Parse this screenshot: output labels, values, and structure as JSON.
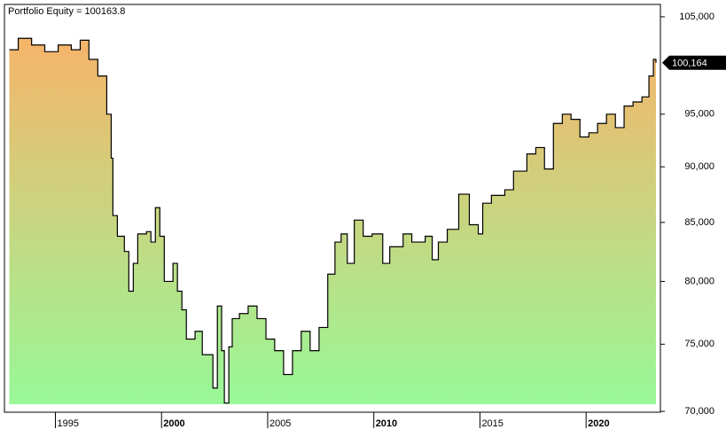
{
  "chart_data": {
    "type": "step-area",
    "title": "Portfolio Equity = 100163.8",
    "x": [
      1992.83,
      1993.25,
      1993.88,
      1994.5,
      1995.13,
      1995.75,
      1996.17,
      1996.58,
      1997.0,
      1997.42,
      1997.63,
      1997.71,
      1997.92,
      1998.25,
      1998.46,
      1998.67,
      1998.88,
      1999.29,
      1999.5,
      1999.71,
      1999.92,
      2000.13,
      2000.54,
      2000.75,
      2000.96,
      2001.17,
      2001.58,
      2001.92,
      2002.21,
      2002.42,
      2002.63,
      2002.83,
      2002.96,
      2003.17,
      2003.33,
      2003.67,
      2004.08,
      2004.5,
      2004.92,
      2005.33,
      2005.75,
      2006.17,
      2006.58,
      2007.0,
      2007.42,
      2007.83,
      2008.17,
      2008.46,
      2008.75,
      2009.08,
      2009.5,
      2009.92,
      2010.42,
      2010.75,
      2011.38,
      2011.79,
      2012.42,
      2012.75,
      2013.04,
      2013.46,
      2014.0,
      2014.5,
      2014.92,
      2015.13,
      2015.54,
      2016.17,
      2016.58,
      2017.21,
      2017.63,
      2018.04,
      2018.46,
      2018.88,
      2019.29,
      2019.71,
      2020.13,
      2020.54,
      2020.96,
      2021.38,
      2021.79,
      2022.21,
      2022.63,
      2022.96,
      2023.17,
      2023.29
    ],
    "values": [
      101500,
      102700,
      102000,
      101300,
      102000,
      101500,
      102500,
      100500,
      98800,
      95000,
      90800,
      85600,
      83800,
      82500,
      79200,
      81500,
      84000,
      84200,
      83300,
      86300,
      83800,
      80000,
      81500,
      79200,
      77700,
      75400,
      76000,
      74200,
      74200,
      71700,
      78000,
      74500,
      70600,
      74800,
      77000,
      77400,
      78000,
      77000,
      75400,
      74500,
      72700,
      74500,
      76000,
      74500,
      76300,
      80600,
      83300,
      84000,
      81500,
      85200,
      83800,
      84000,
      81500,
      82900,
      84000,
      83300,
      83800,
      81800,
      83300,
      84400,
      87500,
      84800,
      84000,
      86700,
      87400,
      87900,
      89600,
      91200,
      91800,
      89800,
      94100,
      95000,
      94500,
      92800,
      93200,
      94100,
      95000,
      93700,
      95800,
      96200,
      96700,
      98800,
      100500,
      100163.8
    ],
    "last_value_label": "100,164",
    "line_color": "#000000",
    "fill_top": "#f6b46a",
    "fill_bottom": "#98f898",
    "xlim": [
      1992.6,
      2023.5
    ],
    "xticks": [
      1995,
      2000,
      2005,
      2010,
      2015,
      2020
    ],
    "ylim": [
      69940,
      106340
    ],
    "log_scale": true,
    "yticks": [
      {
        "value": 70000,
        "label": "70,000"
      },
      {
        "value": 75000,
        "label": "75,000"
      },
      {
        "value": 80000,
        "label": "80,000"
      },
      {
        "value": 85000,
        "label": "85,000"
      },
      {
        "value": 90000,
        "label": "90,000"
      },
      {
        "value": 95000,
        "label": "95,000"
      },
      {
        "value": 105000,
        "label": "105,000"
      }
    ]
  }
}
